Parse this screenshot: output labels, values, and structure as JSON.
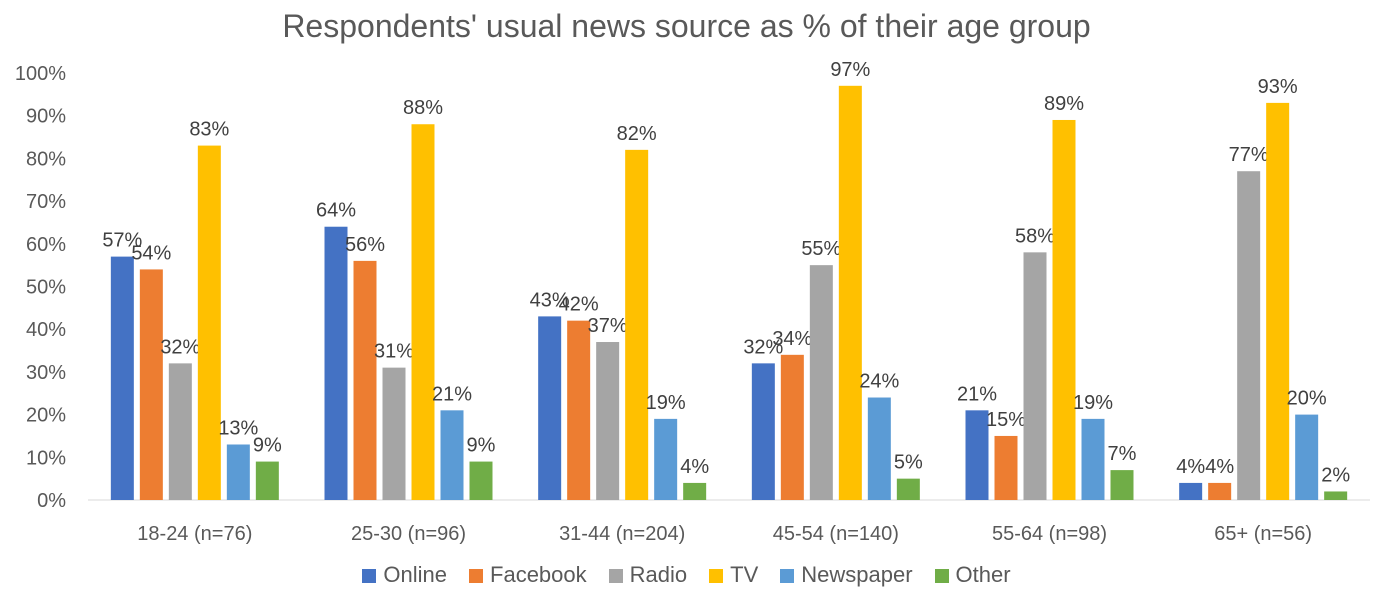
{
  "chart_data": {
    "type": "bar",
    "title": "Respondents' usual news source as % of their age group",
    "categories": [
      "18-24 (n=76)",
      "25-30 (n=96)",
      "31-44 (n=204)",
      "45-54 (n=140)",
      "55-64 (n=98)",
      "65+ (n=56)"
    ],
    "series": [
      {
        "name": "Online",
        "color": "#4472C4",
        "values": [
          57,
          64,
          43,
          32,
          21,
          4
        ]
      },
      {
        "name": "Facebook",
        "color": "#ED7D31",
        "values": [
          54,
          56,
          42,
          34,
          15,
          4
        ]
      },
      {
        "name": "Radio",
        "color": "#A5A5A5",
        "values": [
          32,
          31,
          37,
          55,
          58,
          77
        ]
      },
      {
        "name": "TV",
        "color": "#FFC000",
        "values": [
          83,
          88,
          82,
          97,
          89,
          93
        ]
      },
      {
        "name": "Newspaper",
        "color": "#5B9BD5",
        "values": [
          13,
          21,
          19,
          24,
          19,
          20
        ]
      },
      {
        "name": "Other",
        "color": "#70AD47",
        "values": [
          9,
          9,
          4,
          5,
          7,
          2
        ]
      }
    ],
    "data_labels": [
      [
        "57%",
        "54%",
        "32%",
        "83%",
        "13%",
        "9%"
      ],
      [
        "64%",
        "56%",
        "31%",
        "88%",
        "21%",
        "9%"
      ],
      [
        "43%",
        "42%",
        "37%",
        "82%",
        "19%",
        "4%"
      ],
      [
        "32%",
        "34%",
        "55%",
        "97%",
        "24%",
        "5%"
      ],
      [
        "21%",
        "15%",
        "58%",
        "89%",
        "19%",
        "7%"
      ],
      [
        "4%",
        "4%",
        "77%",
        "93%",
        "20%",
        "2%"
      ]
    ],
    "yticks": [
      "0%",
      "10%",
      "20%",
      "30%",
      "40%",
      "50%",
      "60%",
      "70%",
      "80%",
      "90%",
      "100%"
    ],
    "ylim": [
      0,
      100
    ],
    "xlabel": "",
    "ylabel": "",
    "grid": false,
    "legend_position": "bottom"
  }
}
